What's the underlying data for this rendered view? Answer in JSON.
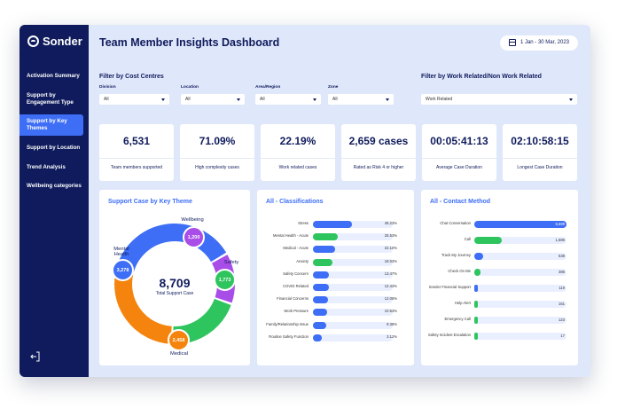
{
  "app": {
    "logo_text": "Sonder",
    "title": "Team Member Insights Dashboard",
    "date_range": "1 Jan - 30 Mar, 2023"
  },
  "sidebar": {
    "items": [
      {
        "label": "Activation Summary"
      },
      {
        "label": "Support by Engagement Type"
      },
      {
        "label": "Support by Key Themes"
      },
      {
        "label": "Support by Location"
      },
      {
        "label": "Trend Analysis"
      },
      {
        "label": "Wellbeing categories"
      }
    ],
    "active_index": 2,
    "logout_icon": "logout-icon"
  },
  "filters": {
    "cost_centres_title": "Filter by Cost Centres",
    "work_related_title": "Filter by Work Related/Non Work Related",
    "division": {
      "label": "Division",
      "value": "All"
    },
    "location": {
      "label": "Location",
      "value": "All"
    },
    "area": {
      "label": "Area/Region",
      "value": "All"
    },
    "zone": {
      "label": "Zone",
      "value": "All"
    },
    "work_related": {
      "value": "Work Related"
    }
  },
  "kpis": [
    {
      "value": "6,531",
      "label": "Team members supported"
    },
    {
      "value": "71.09%",
      "label": "High complexity cases"
    },
    {
      "value": "22.19%",
      "label": "Work related cases"
    },
    {
      "value": "2,659 cases",
      "label": "Rated as Risk 4 or higher"
    },
    {
      "value": "00:05:41:13",
      "label": "Average Case Duration"
    },
    {
      "value": "02:10:58:15",
      "label": "Longest Case Duration"
    }
  ],
  "panels": {
    "key_theme_title": "Support Case by Key Theme",
    "classifications_title": "All - Classifications",
    "contact_title": "All - Contact Method"
  },
  "colors": {
    "navy": "#0f1b5c",
    "blue": "#3d6ef5",
    "green": "#2fc55e",
    "orange": "#f5840f",
    "purple": "#a94de8"
  },
  "chart_data": [
    {
      "type": "pie",
      "title": "Support Case by Key Theme",
      "center_value": "8,709",
      "center_label": "Total Support Case",
      "categories": [
        "Mental Health",
        "Wellbeing",
        "Safety",
        "Medical"
      ],
      "values": [
        3278,
        1200,
        1773,
        2458
      ],
      "value_labels": [
        "3,278",
        "1,200",
        "1,773",
        "2,458"
      ],
      "colors": [
        "#3d6ef5",
        "#a94de8",
        "#2fc55e",
        "#f5840f"
      ]
    },
    {
      "type": "bar",
      "title": "All - Classifications",
      "categories": [
        "Stress",
        "Mental Health - Acute",
        "Medical - Acute",
        "Anxiety",
        "Safety Concern",
        "COVID Related",
        "Financial Concerns",
        "Work Pressure",
        "Family/Relationship Issue",
        "Routine Safety Function"
      ],
      "values": [
        46.23,
        25.53,
        22.1,
        18.03,
        13.47,
        12.43,
        12.06,
        10.53,
        9.38,
        3.12
      ],
      "value_labels": [
        "46.23%",
        "25.53%",
        "22.10%",
        "18.03%",
        "13.47%",
        "12.43%",
        "12.06%",
        "10.53%",
        "9.38%",
        "3.12%"
      ],
      "colors": [
        "#3d6ef5",
        "#2fc55e",
        "#3d6ef5",
        "#2fc55e",
        "#3d6ef5",
        "#3d6ef5",
        "#3d6ef5",
        "#3d6ef5",
        "#3d6ef5",
        "#3d6ef5"
      ]
    },
    {
      "type": "bar",
      "title": "All - Contact Method",
      "categories": [
        "Chat Conversation",
        "Call",
        "Track My Journey",
        "Check On Me",
        "Sonder Financial Support",
        "Help Alert",
        "Emergency Call",
        "Safety Incident Escalation"
      ],
      "values": [
        5599,
        1686,
        538,
        386,
        119,
        161,
        123,
        17
      ],
      "value_labels": [
        "5,599",
        "1,686",
        "538",
        "386",
        "119",
        "161",
        "123",
        "17"
      ],
      "colors": [
        "#3d6ef5",
        "#2fc55e",
        "#3d6ef5",
        "#2fc55e",
        "#3d6ef5",
        "#2fc55e",
        "#2fc55e",
        "#2fc55e"
      ]
    }
  ]
}
